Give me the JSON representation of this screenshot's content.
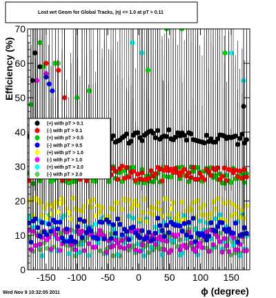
{
  "chart_data": {
    "type": "scatter",
    "title": "Lost wrt Geom for Global Tracks, |η| <= 1.0 at pT > 0.11",
    "xlabel": "ϕ (degree)",
    "ylabel": "Efficiency (%)",
    "xlim": [
      -180,
      180
    ],
    "ylim": [
      0,
      70
    ],
    "x_ticks": [
      -150,
      -100,
      -50,
      0,
      50,
      100,
      150
    ],
    "y_ticks": [
      0,
      10,
      20,
      30,
      40,
      50,
      60,
      70
    ],
    "grid": false,
    "legend_position": "left-middle",
    "series": [
      {
        "name": "(+) with pT > 0.1",
        "color": "#000000",
        "level": 38.5,
        "spread": 1.5,
        "outliers": [
          [
            -172,
            55
          ],
          [
            -168,
            63
          ],
          [
            -160,
            59
          ],
          [
            170,
            47.5
          ]
        ]
      },
      {
        "name": "(-) with pT > 0.1",
        "color": "#ff0000",
        "level": 28.0,
        "spread": 2.2,
        "outliers": [
          [
            -150,
            60
          ],
          [
            -130,
            58
          ],
          [
            -120,
            50
          ]
        ]
      },
      {
        "name": "(+) with pT > 0.5",
        "color": "#00cc00",
        "level": 27.5,
        "spread": 2.5,
        "outliers": [
          [
            -175,
            48
          ],
          [
            -160,
            66
          ],
          [
            -155,
            59
          ],
          [
            -135,
            60
          ],
          [
            -100,
            50
          ],
          [
            -80,
            52
          ],
          [
            15,
            58
          ],
          [
            45,
            70
          ],
          [
            70,
            70
          ],
          [
            140,
            63
          ]
        ]
      },
      {
        "name": "(-) with pT > 0.5",
        "color": "#0000ff",
        "level": 11.5,
        "spread": 3.5,
        "outliers": [
          [
            -150,
            56
          ],
          [
            -145,
            54
          ],
          [
            -140,
            52
          ]
        ]
      },
      {
        "name": "(+) with pT > 1.0",
        "color": "#ffff00",
        "level": 17.5,
        "spread": 3.5,
        "outliers": []
      },
      {
        "name": "(-) with pT > 1.0",
        "color": "#ff00ff",
        "level": 8.5,
        "spread": 3.5,
        "outliers": [
          [
            -165,
            55
          ],
          [
            -150,
            57
          ]
        ]
      },
      {
        "name": "(+) with pT > 2.0",
        "color": "#00ffff",
        "level": 10.0,
        "spread": 6.0,
        "outliers": [
          [
            -10,
            66
          ],
          [
            5,
            63
          ],
          [
            150,
            63
          ],
          [
            170,
            55
          ]
        ]
      },
      {
        "name": "(-) with pT > 2.0",
        "color": "#66cc66",
        "level": 8.0,
        "spread": 4.0,
        "outliers": [
          [
            -130,
            60
          ],
          [
            -110,
            38
          ],
          [
            40,
            30
          ]
        ]
      }
    ]
  },
  "footer": {
    "timestamp": "Wed Nov  9 10:32:05 2011"
  }
}
